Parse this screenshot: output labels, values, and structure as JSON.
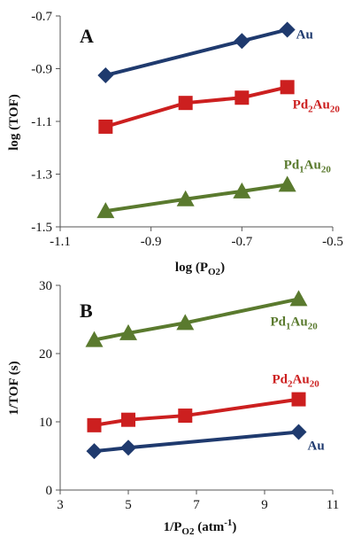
{
  "chart_data": [
    {
      "type": "line",
      "panel": "A",
      "xlabel": "log (P",
      "xlabel_sub": "O2",
      "xlabel_tail": ")",
      "ylabel": "log (TOF)",
      "xlim": [
        -1.1,
        -0.5
      ],
      "ylim": [
        -1.5,
        -0.7
      ],
      "xticks": [
        -1.1,
        -0.9,
        -0.7,
        -0.5
      ],
      "yticks": [
        -1.5,
        -1.3,
        -1.1,
        -0.9,
        -0.7
      ],
      "xtick_labels": [
        "-1.1",
        "-0.9",
        "-0.7",
        "-0.5"
      ],
      "ytick_labels": [
        "-1.5",
        "-1.3",
        "-1.1",
        "-0.9",
        "-0.7"
      ],
      "grid": false,
      "legend": "inline labels at right end of each series",
      "series": [
        {
          "name": "Au",
          "label_main": "Au",
          "label_sub1": "",
          "label_mid": "",
          "label_sub2": "",
          "color": "#1f3a6e",
          "marker": "diamond",
          "x": [
            -1.0,
            -0.7,
            -0.6
          ],
          "y": [
            -0.925,
            -0.795,
            -0.752
          ]
        },
        {
          "name": "Pd2Au20",
          "label_main": "Pd",
          "label_sub1": "2",
          "label_mid": "Au",
          "label_sub2": "20",
          "color": "#cc1f1f",
          "marker": "square",
          "x": [
            -1.0,
            -0.824,
            -0.7,
            -0.6
          ],
          "y": [
            -1.12,
            -1.03,
            -1.01,
            -0.97
          ]
        },
        {
          "name": "Pd1Au20",
          "label_main": "Pd",
          "label_sub1": "1",
          "label_mid": "Au",
          "label_sub2": "20",
          "color": "#5a7a2e",
          "marker": "triangle",
          "x": [
            -1.0,
            -0.824,
            -0.7,
            -0.6
          ],
          "y": [
            -1.44,
            -1.395,
            -1.365,
            -1.34
          ]
        }
      ]
    },
    {
      "type": "line",
      "panel": "B",
      "xlabel": "1/P",
      "xlabel_sub": "O2",
      "xlabel_tail": " (atm",
      "xlabel_sup": "-1",
      "xlabel_end": ")",
      "ylabel": "1/TOF (s)",
      "xlim": [
        3,
        11
      ],
      "ylim": [
        0,
        30
      ],
      "xticks": [
        3,
        5,
        7,
        9,
        11
      ],
      "yticks": [
        0,
        10,
        20,
        30
      ],
      "xtick_labels": [
        "3",
        "5",
        "7",
        "9",
        "11"
      ],
      "ytick_labels": [
        "0",
        "10",
        "20",
        "30"
      ],
      "grid": false,
      "legend": "inline labels at right end of each series",
      "series": [
        {
          "name": "Pd1Au20",
          "label_main": "Pd",
          "label_sub1": "1",
          "label_mid": "Au",
          "label_sub2": "20",
          "color": "#5a7a2e",
          "marker": "triangle",
          "x": [
            4,
            5,
            6.67,
            10
          ],
          "y": [
            22.0,
            23.0,
            24.5,
            28.0
          ]
        },
        {
          "name": "Pd2Au20",
          "label_main": "Pd",
          "label_sub1": "2",
          "label_mid": "Au",
          "label_sub2": "20",
          "color": "#cc1f1f",
          "marker": "square",
          "x": [
            4,
            5,
            6.67,
            10
          ],
          "y": [
            9.5,
            10.3,
            10.9,
            13.3
          ]
        },
        {
          "name": "Au",
          "label_main": "Au",
          "label_sub1": "",
          "label_mid": "",
          "label_sub2": "",
          "color": "#1f3a6e",
          "marker": "diamond",
          "x": [
            4,
            5,
            10
          ],
          "y": [
            5.7,
            6.2,
            8.5
          ]
        }
      ]
    }
  ]
}
